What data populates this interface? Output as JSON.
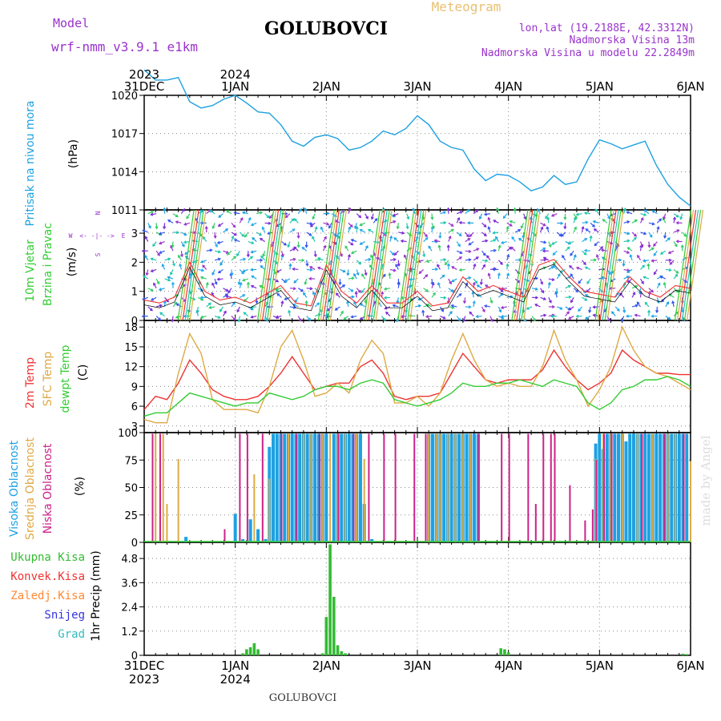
{
  "header": {
    "model_label": "Model",
    "model_name": "wrf-nmm_v3.9.1 e1km",
    "station": "GOLUBOVCI",
    "app_title": "Meteogram",
    "lonlat": "lon,lat (19.2188E, 42.3312N)",
    "elevation": "Nadmorska Visina 13m",
    "model_elevation": "Nadmorska Visina u modelu 22.2849m"
  },
  "time_axis": {
    "labels": [
      "31DEC",
      "1JAN",
      "2JAN",
      "3JAN",
      "4JAN",
      "5JAN",
      "6JAN"
    ],
    "years": [
      {
        "label": "2023",
        "at": "31DEC"
      },
      {
        "label": "2024",
        "at": "1JAN"
      }
    ]
  },
  "footer": {
    "station": "GOLUBOVCI",
    "watermark": "made by Angel"
  },
  "panels": {
    "pressure": {
      "ylabel_1": "Pritisak na nivou mora",
      "unit": "(hPa)"
    },
    "wind": {
      "ylabel_1": "10m Vjetar",
      "ylabel_2": "Brzina i Pravac",
      "unit": "(m/s)",
      "compass": {
        "n": "N",
        "s": "S",
        "e": "E",
        "w": "W"
      }
    },
    "temp": {
      "label_2m": "2m Temp",
      "label_sfc": "SFC Temp",
      "label_dew": "dewpt Temp",
      "unit": "(C)"
    },
    "cloud": {
      "label_high": "Visoka Oblacnost",
      "label_mid": "Srednja Oblacnost",
      "label_low": "Niska Oblacnost",
      "unit": "(%)"
    },
    "precip": {
      "unit": "1hr Precip (mm)",
      "legend": [
        {
          "name": "Ukupna Kisa",
          "color": "#33bb33"
        },
        {
          "name": "Konvek.Kisa",
          "color": "#ee3333"
        },
        {
          "name": "Zaledj.Kisa",
          "color": "#ff8833"
        },
        {
          "name": "Snijeg",
          "color": "#3333dd"
        },
        {
          "name": "Grad",
          "color": "#33bbbb"
        }
      ]
    }
  },
  "colors": {
    "pressure": "#1da1e2",
    "t2m": "#ee3333",
    "sfc": "#ddaa44",
    "dew": "#33cc33",
    "high": "#1da1e2",
    "mid": "#ddaa44",
    "low": "#cc2288",
    "precip": "#33bb33",
    "title_purple": "#9933cc",
    "meteogram": "#e8c070"
  },
  "chart_data": [
    {
      "type": "line",
      "title": "",
      "ylabel": "Pritisak na nivou mora (hPa)",
      "ylim": [
        1011,
        1020
      ],
      "yticks": [
        1011,
        1014,
        1017,
        1020
      ],
      "x_hours": [
        0,
        3,
        6,
        9,
        12,
        15,
        18,
        21,
        24,
        27,
        30,
        33,
        36,
        39,
        42,
        45,
        48,
        51,
        54,
        57,
        60,
        63,
        66,
        69,
        72,
        75,
        78,
        81,
        84,
        87,
        90,
        93,
        96,
        99,
        102,
        105,
        108,
        111,
        114,
        117,
        120,
        123,
        126,
        129,
        132,
        135,
        138,
        141,
        144
      ],
      "series": [
        {
          "values": [
            1022.0,
            1021.2,
            1021.2,
            1021.4,
            1019.5,
            1019.0,
            1019.2,
            1019.7,
            1020.0,
            1019.4,
            1018.7,
            1018.6,
            1017.7,
            1016.4,
            1016.0,
            1016.7,
            1016.9,
            1016.6,
            1015.7,
            1015.9,
            1016.4,
            1017.2,
            1016.9,
            1017.4,
            1018.4,
            1017.7,
            1016.4,
            1015.9,
            1015.7,
            1014.2,
            1013.3,
            1013.8,
            1013.7,
            1013.2,
            1012.5,
            1012.8,
            1013.7,
            1013.0,
            1013.2,
            1015.0,
            1016.5,
            1016.2,
            1015.8,
            1016.1,
            1016.4,
            1014.5,
            1013.0,
            1012.0,
            1011.3
          ]
        }
      ],
      "grid": true
    },
    {
      "type": "line",
      "title": "",
      "ylabel": "10m Vjetar Brzina i Pravac (m/s)",
      "ylim": [
        0,
        3.8
      ],
      "yticks": [
        0,
        1,
        2,
        3
      ],
      "x_hours": [
        0,
        4,
        8,
        12,
        16,
        20,
        24,
        28,
        32,
        36,
        40,
        44,
        48,
        52,
        56,
        60,
        64,
        68,
        72,
        76,
        80,
        84,
        88,
        92,
        96,
        100,
        104,
        108,
        112,
        116,
        120,
        124,
        128,
        132,
        136,
        140,
        144
      ],
      "series": [
        {
          "values": [
            0.7,
            0.6,
            0.8,
            2.0,
            1.0,
            0.7,
            0.8,
            0.6,
            0.9,
            1.2,
            0.6,
            0.5,
            1.9,
            1.0,
            0.6,
            1.2,
            0.6,
            0.6,
            1.0,
            0.5,
            0.6,
            1.5,
            1.0,
            1.2,
            1.0,
            0.8,
            1.9,
            2.1,
            1.5,
            1.0,
            0.9,
            0.8,
            1.5,
            1.0,
            0.8,
            1.2,
            1.1
          ]
        }
      ],
      "grid": true
    },
    {
      "type": "line",
      "title": "",
      "ylabel": "(C)",
      "ylim": [
        2,
        19
      ],
      "yticks": [
        3,
        6,
        9,
        12,
        15,
        18
      ],
      "x_hours": [
        0,
        3,
        6,
        9,
        12,
        15,
        18,
        21,
        24,
        27,
        30,
        33,
        36,
        39,
        42,
        45,
        48,
        51,
        54,
        57,
        60,
        63,
        66,
        69,
        72,
        75,
        78,
        81,
        84,
        87,
        90,
        93,
        96,
        99,
        102,
        105,
        108,
        111,
        114,
        117,
        120,
        123,
        126,
        129,
        132,
        135,
        138,
        141,
        144
      ],
      "series": [
        {
          "name": "2m Temp",
          "values": [
            5.5,
            7.5,
            7.0,
            9.5,
            13.0,
            11.0,
            8.5,
            7.5,
            7.0,
            7.0,
            7.5,
            9.0,
            11.0,
            13.5,
            11.0,
            8.5,
            9.0,
            9.5,
            9.5,
            12.0,
            13.0,
            11.0,
            7.5,
            7.0,
            7.5,
            7.5,
            8.0,
            11.0,
            14.0,
            12.0,
            10.0,
            9.5,
            10.0,
            10.0,
            10.0,
            11.5,
            14.5,
            12.0,
            10.0,
            8.5,
            9.5,
            11.0,
            14.5,
            13.0,
            12.0,
            11.0,
            11.0,
            10.8,
            10.8
          ]
        },
        {
          "name": "SFC Temp",
          "values": [
            4.0,
            3.5,
            3.5,
            11.0,
            17.0,
            14.0,
            7.0,
            5.5,
            5.5,
            5.5,
            5.0,
            9.0,
            15.0,
            17.5,
            13.0,
            7.5,
            8.0,
            9.5,
            8.0,
            13.0,
            16.0,
            14.0,
            6.5,
            6.5,
            7.5,
            6.0,
            8.0,
            13.0,
            17.0,
            13.0,
            10.0,
            9.0,
            9.5,
            9.0,
            9.0,
            12.0,
            17.5,
            13.0,
            10.0,
            6.0,
            8.5,
            12.0,
            18.0,
            14.5,
            12.0,
            11.0,
            10.5,
            9.5,
            8.5
          ]
        },
        {
          "name": "dewpt Temp",
          "values": [
            4.5,
            5.0,
            5.0,
            6.5,
            8.0,
            7.5,
            7.0,
            6.5,
            6.0,
            6.5,
            6.5,
            8.0,
            7.5,
            7.0,
            7.5,
            8.5,
            9.0,
            9.0,
            8.5,
            9.5,
            10.0,
            9.5,
            7.0,
            6.5,
            6.0,
            6.5,
            7.0,
            8.0,
            9.5,
            9.0,
            9.0,
            9.5,
            9.5,
            10.0,
            9.5,
            9.0,
            10.0,
            9.5,
            9.0,
            6.5,
            5.5,
            6.5,
            8.5,
            9.0,
            10.0,
            10.0,
            10.5,
            10.0,
            9.0
          ]
        }
      ],
      "grid": true
    },
    {
      "type": "bar",
      "title": "",
      "ylabel": "(%)",
      "ylim": [
        0,
        100
      ],
      "yticks": [
        0,
        25,
        50,
        75,
        100
      ],
      "series": [
        {
          "name": "Visoka Oblacnost",
          "x_hours": [
            11,
            24,
            26,
            28,
            30,
            32,
            33,
            34,
            35,
            36,
            37,
            38,
            39,
            40,
            41,
            42,
            43,
            44,
            45,
            46,
            47,
            48,
            50,
            51,
            52,
            53,
            54,
            55,
            56,
            57,
            58,
            60,
            75,
            76,
            77,
            78,
            79,
            80,
            81,
            82,
            83,
            84,
            85,
            86,
            87,
            88,
            119,
            120,
            121,
            122,
            123,
            124,
            125,
            126,
            127,
            128,
            129,
            130,
            131,
            132,
            133,
            134,
            135,
            136,
            137,
            138,
            139,
            140,
            141,
            142,
            143
          ],
          "values": [
            5,
            26,
            3,
            21,
            12,
            3,
            87,
            99,
            99,
            99,
            99,
            99,
            99,
            99,
            99,
            99,
            99,
            99,
            99,
            99,
            99,
            99,
            99,
            99,
            99,
            99,
            99,
            99,
            99,
            99,
            35,
            3,
            99,
            99,
            99,
            99,
            99,
            99,
            99,
            99,
            99,
            99,
            99,
            99,
            99,
            99,
            90,
            99,
            85,
            99,
            99,
            99,
            99,
            99,
            92,
            99,
            99,
            99,
            99,
            99,
            99,
            99,
            99,
            99,
            99,
            99,
            99,
            99,
            99,
            99,
            99
          ]
        },
        {
          "name": "Srednja Oblacnost",
          "x_hours": [
            3,
            5,
            6,
            9,
            29,
            33,
            38,
            42,
            44,
            47,
            49,
            51,
            53,
            56,
            58,
            75,
            77,
            78,
            80,
            82,
            84,
            86,
            119,
            121,
            123,
            126,
            130,
            134,
            138,
            140,
            144
          ],
          "values": [
            99,
            99,
            35,
            76,
            62,
            58,
            99,
            99,
            99,
            99,
            99,
            99,
            99,
            99,
            76,
            99,
            99,
            99,
            99,
            99,
            99,
            99,
            76,
            99,
            99,
            99,
            99,
            99,
            99,
            99,
            74
          ]
        },
        {
          "name": "Niska Oblacnost",
          "x_hours": [
            2,
            4,
            21,
            25,
            27,
            31,
            36,
            40,
            46,
            51,
            55,
            59,
            63,
            66,
            71,
            74,
            88,
            94,
            96,
            101,
            103,
            105,
            107,
            108,
            112,
            116,
            118,
            119,
            121,
            123,
            131,
            137,
            142
          ],
          "values": [
            99,
            99,
            12,
            99,
            99,
            99,
            99,
            99,
            99,
            99,
            99,
            99,
            99,
            99,
            99,
            99,
            99,
            99,
            99,
            99,
            35,
            99,
            99,
            99,
            52,
            20,
            30,
            75,
            99,
            99,
            99,
            99,
            99
          ]
        }
      ],
      "grid": true
    },
    {
      "type": "bar",
      "title": "",
      "ylabel": "1hr Precip (mm)",
      "ylim": [
        0,
        5.6
      ],
      "yticks": [
        0,
        1.2,
        2.4,
        3.6,
        4.8
      ],
      "series": [
        {
          "name": "Ukupna Kisa",
          "x_hours": [
            26,
            27,
            28,
            29,
            30,
            47,
            48,
            49,
            50,
            51,
            52,
            53,
            94,
            95,
            96,
            142,
            143
          ],
          "values": [
            0.1,
            0.3,
            0.4,
            0.6,
            0.3,
            0.1,
            1.9,
            5.5,
            2.9,
            0.5,
            0.2,
            0.1,
            0.35,
            0.3,
            0.15,
            0.08,
            0.06
          ]
        }
      ],
      "grid": true
    }
  ]
}
